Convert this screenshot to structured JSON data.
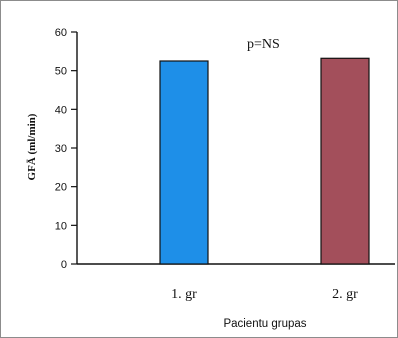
{
  "chart_data": {
    "type": "bar",
    "categories": [
      "1. gr",
      "2. gr"
    ],
    "values": [
      52.5,
      53.2
    ],
    "colors": [
      "#1e8fe8",
      "#a34f5b"
    ],
    "title": "",
    "xlabel": "Pacientu grupas",
    "ylabel": "GFĀ (ml/min)",
    "ylim": [
      0,
      60
    ],
    "yticks": [
      0,
      10,
      20,
      30,
      40,
      50,
      60
    ],
    "annotation": "p=NS",
    "grid": false
  }
}
